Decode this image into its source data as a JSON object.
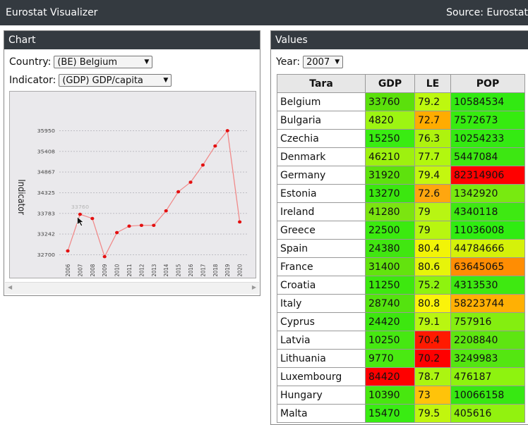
{
  "header": {
    "title": "Eurostat Visualizer",
    "source": "Source: Eurostat"
  },
  "chart_panel": {
    "title": "Chart",
    "country_label": "Country:",
    "country_value": "(BE) Belgium",
    "indicator_label": "Indicator:",
    "indicator_value": "(GDP) GDP/capita"
  },
  "values_panel": {
    "title": "Values",
    "year_label": "Year:",
    "year_value": "2007",
    "columns": [
      "Tara",
      "GDP",
      "LE",
      "POP"
    ],
    "rows": [
      {
        "tara": "Belgium",
        "gdp": "33760",
        "le": "79.2",
        "pop": "10584534",
        "c": [
          "#5be00c",
          "#bdf80f",
          "#32e912"
        ]
      },
      {
        "tara": "Bulgaria",
        "gdp": "4820",
        "le": "72.7",
        "pop": "7572673",
        "c": [
          "#9df512",
          "#ffac00",
          "#36eb10"
        ]
      },
      {
        "tara": "Czechia",
        "gdp": "15250",
        "le": "76.3",
        "pop": "10254233",
        "c": [
          "#39ec12",
          "#aef30e",
          "#34ea12"
        ]
      },
      {
        "tara": "Denmark",
        "gdp": "46210",
        "le": "77.7",
        "pop": "5447084",
        "c": [
          "#9ef10f",
          "#b2f70f",
          "#3de712"
        ]
      },
      {
        "tara": "Germany",
        "gdp": "31920",
        "le": "79.4",
        "pop": "82314906",
        "c": [
          "#5ee20d",
          "#c4f70f",
          "#ff0000"
        ]
      },
      {
        "tara": "Estonia",
        "gdp": "13270",
        "le": "72.6",
        "pop": "1342920",
        "c": [
          "#3be70f",
          "#ffa60f",
          "#78ea10"
        ]
      },
      {
        "tara": "Ireland",
        "gdp": "41280",
        "le": "79",
        "pop": "4340118",
        "c": [
          "#7be510",
          "#b8f513",
          "#3ee912"
        ]
      },
      {
        "tara": "Greece",
        "gdp": "22500",
        "le": "79",
        "pop": "11036008",
        "c": [
          "#3bea0f",
          "#b8f610",
          "#2fec11"
        ]
      },
      {
        "tara": "Spain",
        "gdp": "24380",
        "le": "80.4",
        "pop": "44784666",
        "c": [
          "#41e611",
          "#f2f407",
          "#d5f10a"
        ]
      },
      {
        "tara": "France",
        "gdp": "31400",
        "le": "80.6",
        "pop": "63645065",
        "c": [
          "#63e30e",
          "#e7f40a",
          "#ff8d03"
        ]
      },
      {
        "tara": "Croatia",
        "gdp": "11250",
        "le": "75.2",
        "pop": "4313530",
        "c": [
          "#3de80f",
          "#8ef30f",
          "#3ee911"
        ]
      },
      {
        "tara": "Italy",
        "gdp": "28740",
        "le": "80.8",
        "pop": "58223744",
        "c": [
          "#54e30f",
          "#fbf30a",
          "#ffb004"
        ]
      },
      {
        "tara": "Cyprus",
        "gdp": "24420",
        "le": "79.1",
        "pop": "757916",
        "c": [
          "#3de70f",
          "#b9f611",
          "#84ee10"
        ]
      },
      {
        "tara": "Latvia",
        "gdp": "10250",
        "le": "70.4",
        "pop": "2208840",
        "c": [
          "#46e811",
          "#ff1a00",
          "#5ee511"
        ]
      },
      {
        "tara": "Lithuania",
        "gdp": "9770",
        "le": "70.2",
        "pop": "3249983",
        "c": [
          "#4ae912",
          "#ff0000",
          "#54e611"
        ]
      },
      {
        "tara": "Luxembourg",
        "gdp": "84420",
        "le": "78.7",
        "pop": "476187",
        "c": [
          "#ff0000",
          "#acf511",
          "#8ef30f"
        ]
      },
      {
        "tara": "Hungary",
        "gdp": "10390",
        "le": "73",
        "pop": "10066158",
        "c": [
          "#48e70f",
          "#ffc30a",
          "#37e812"
        ]
      },
      {
        "tara": "Malta",
        "gdp": "15470",
        "le": "79.5",
        "pop": "405616",
        "c": [
          "#39ec12",
          "#c1f60e",
          "#92f20f"
        ]
      }
    ]
  },
  "chart_data": {
    "type": "line",
    "ylabel": "Indicator",
    "xlabel": "",
    "categories": [
      "2006",
      "2007",
      "2008",
      "2009",
      "2010",
      "2011",
      "2012",
      "2013",
      "2014",
      "2015",
      "2016",
      "2017",
      "2018",
      "2019",
      "2020"
    ],
    "values": [
      32800,
      33760,
      33650,
      32650,
      33280,
      33450,
      33470,
      33470,
      33850,
      34350,
      34600,
      35050,
      35550,
      35950,
      33560
    ],
    "yticks": [
      "32700",
      "33242",
      "33783",
      "34325",
      "34867",
      "35408",
      "35950"
    ],
    "ylim": [
      32700,
      35950
    ],
    "hover_label": "33760",
    "color": "#e31010",
    "grid": true
  }
}
